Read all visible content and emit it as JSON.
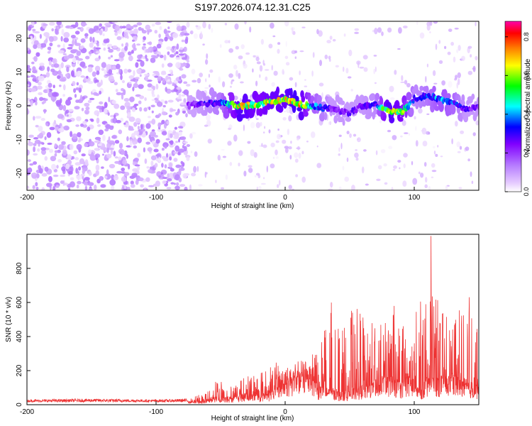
{
  "title": "S197.2026.074.12.31.C25",
  "colors": {
    "line": "#ee3333",
    "axis": "#000000",
    "colormap": [
      "#ffffff",
      "#e6ccff",
      "#b880ff",
      "#8000ff",
      "#0000ff",
      "#00ffff",
      "#00ff00",
      "#ffff00",
      "#ff8000",
      "#ff0000",
      "#ff00aa"
    ]
  },
  "chart_data": [
    {
      "type": "heatmap",
      "name": "spectrogram",
      "xlabel": "Height of straight line (km)",
      "ylabel": "Frequency (Hz)",
      "xlim": [
        -200,
        150
      ],
      "ylim": [
        -25,
        25
      ],
      "xticks": [
        -200,
        -100,
        0,
        100
      ],
      "xtick_labels": [
        "-200",
        "-100",
        "0",
        "100"
      ],
      "yticks": [
        -20,
        -10,
        0,
        10,
        20
      ],
      "ytick_labels": [
        "-20",
        "-10",
        "0",
        "10",
        "20"
      ],
      "colorbar": {
        "label": "Normalized spectral amplitude",
        "range": [
          0,
          0.88
        ],
        "ticks": [
          0.0,
          0.2,
          0.4,
          0.6,
          0.8
        ],
        "tick_labels": [
          "0.0",
          "0.2",
          "0.4",
          "0.6",
          "0.8"
        ]
      },
      "ridge": {
        "x": [
          -75,
          -65,
          -50,
          -35,
          -20,
          -10,
          0,
          10,
          20,
          35,
          50,
          60,
          70,
          80,
          90,
          100,
          110,
          120,
          130,
          140,
          150
        ],
        "freq": [
          0,
          0.5,
          1,
          0,
          0.5,
          1,
          2,
          0.5,
          0,
          -1,
          -2,
          0,
          0.5,
          -1.5,
          -2,
          2,
          3,
          2,
          1,
          -1,
          0
        ],
        "peak_amplitude": [
          0.25,
          0.3,
          0.4,
          0.8,
          0.7,
          0.75,
          0.75,
          0.85,
          0.5,
          0.3,
          0.3,
          0.3,
          0.35,
          0.8,
          0.7,
          0.35,
          0.4,
          0.5,
          0.45,
          0.3,
          0.3
        ]
      },
      "noise_region": {
        "x": [
          -200,
          -75
        ],
        "amplitude": [
          0.02,
          0.15
        ]
      }
    },
    {
      "type": "line",
      "name": "snr",
      "xlabel": "Height of straight line (km)",
      "ylabel": "SNR (10 * v/v)",
      "xlim": [
        -200,
        150
      ],
      "ylim": [
        0,
        1000
      ],
      "xticks": [
        -200,
        -100,
        0,
        100
      ],
      "xtick_labels": [
        "-200",
        "-100",
        "0",
        "100"
      ],
      "yticks": [
        0,
        200,
        400,
        600,
        800
      ],
      "ytick_labels": [
        "0",
        "200",
        "400",
        "600",
        "800"
      ],
      "envelope": {
        "x": [
          -200,
          -150,
          -100,
          -75,
          -60,
          -55,
          -40,
          -30,
          -20,
          -10,
          0,
          10,
          20,
          25,
          30,
          35,
          45,
          50,
          60,
          70,
          80,
          90,
          95,
          100,
          105,
          110,
          112,
          115,
          120,
          130,
          140,
          150
        ],
        "base": [
          15,
          15,
          15,
          15,
          20,
          40,
          40,
          60,
          50,
          70,
          140,
          160,
          200,
          90,
          90,
          80,
          60,
          80,
          100,
          120,
          150,
          120,
          150,
          100,
          90,
          150,
          120,
          150,
          150,
          150,
          130,
          100
        ],
        "peak": [
          30,
          35,
          30,
          35,
          80,
          160,
          110,
          200,
          180,
          260,
          220,
          260,
          300,
          400,
          440,
          620,
          480,
          560,
          570,
          580,
          600,
          560,
          380,
          480,
          720,
          800,
          980,
          720,
          560,
          560,
          680,
          560
        ]
      },
      "max_value": 990,
      "max_at_x": 113
    }
  ]
}
